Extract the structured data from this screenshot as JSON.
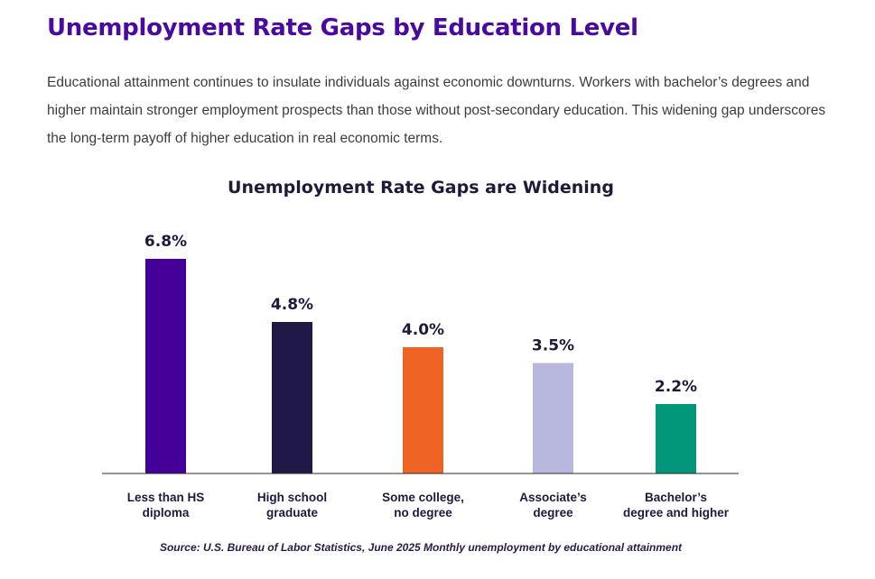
{
  "page": {
    "title": "Unemployment Rate Gaps by Education Level",
    "intro": "Educational attainment continues to insulate individuals against economic downturns. Workers with bachelor’s degrees and higher maintain stronger employment prospects than those without post-secondary education. This widening gap underscores the long-term payoff of higher education in real economic terms.",
    "source": "Source: U.S. Bureau of Labor Statistics, June 2025 Monthly unemployment by educational attainment"
  },
  "chart_data": {
    "type": "bar",
    "title": "Unemployment Rate Gaps are Widening",
    "xlabel": "",
    "ylabel": "",
    "ylim": [
      0,
      6.8
    ],
    "grid": false,
    "categories": [
      [
        "Less than HS",
        "diploma"
      ],
      [
        "High school",
        "graduate"
      ],
      [
        "Some college,",
        "no degree"
      ],
      [
        "Associate’s",
        "degree"
      ],
      [
        "Bachelor’s",
        "degree and higher"
      ]
    ],
    "values": [
      6.8,
      4.8,
      4.0,
      3.5,
      2.2
    ],
    "value_labels": [
      "6.8%",
      "4.8%",
      "4.0%",
      "3.5%",
      "2.2%"
    ],
    "colors": [
      "#440099",
      "#201846",
      "#ef6424",
      "#b8b8df",
      "#02967a"
    ]
  }
}
